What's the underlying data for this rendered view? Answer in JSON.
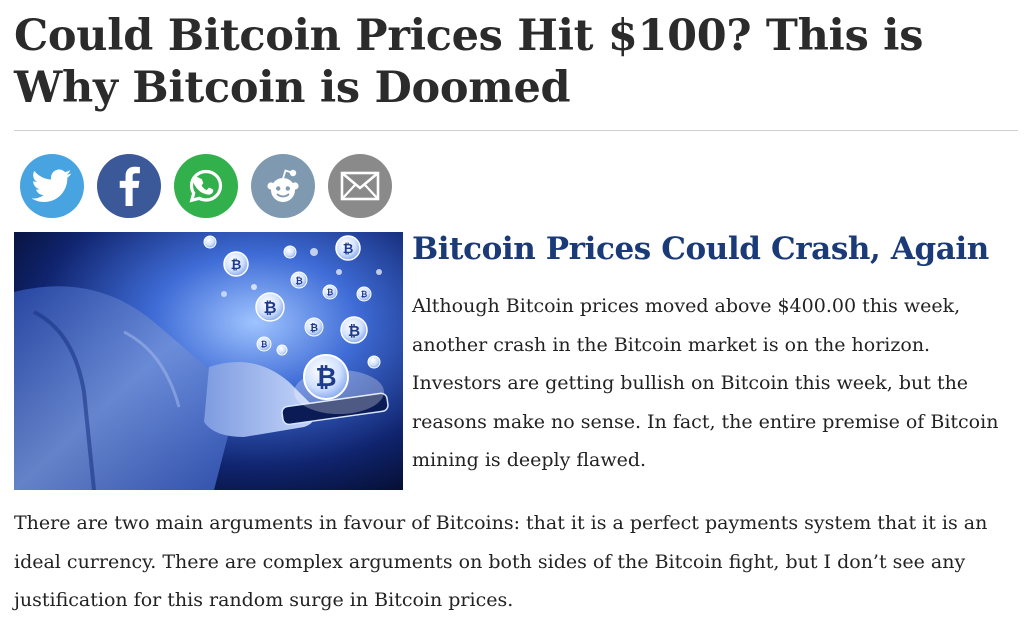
{
  "article": {
    "headline": "Could Bitcoin Prices Hit $100? This is Why Bitcoin is Doomed",
    "subhead": "Bitcoin Prices Could Crash, Again",
    "intro": "Although Bitcoin prices moved above $400.00 this week, another crash in the Bitcoin market is on the horizon. Investors are getting bullish on Bitcoin this week, but the reasons make no sense. In fact, the entire premise of Bitcoin mining is deeply flawed.",
    "body": "There are two main arguments in favour of Bitcoins: that it is a perfect payments system that it is an ideal currency. There are complex arguments on both sides of the Bitcoin fight, but I don’t see any justification for this random surge in Bitcoin prices."
  },
  "share": {
    "buttons": [
      {
        "id": "twitter",
        "icon": "twitter-icon",
        "color": "#48a4e0"
      },
      {
        "id": "facebook",
        "icon": "facebook-icon",
        "color": "#3b5998"
      },
      {
        "id": "whatsapp",
        "icon": "whatsapp-icon",
        "color": "#32b04b"
      },
      {
        "id": "reddit",
        "icon": "reddit-icon",
        "color": "#7f9ab0"
      },
      {
        "id": "email",
        "icon": "email-icon",
        "color": "#8a8a8a"
      }
    ]
  },
  "hero": {
    "icon": "bitcoin-icon",
    "coin_symbol": "B"
  },
  "colors": {
    "subhead": "#1b3a78",
    "text": "#222222",
    "headline": "#2b2b2b"
  }
}
